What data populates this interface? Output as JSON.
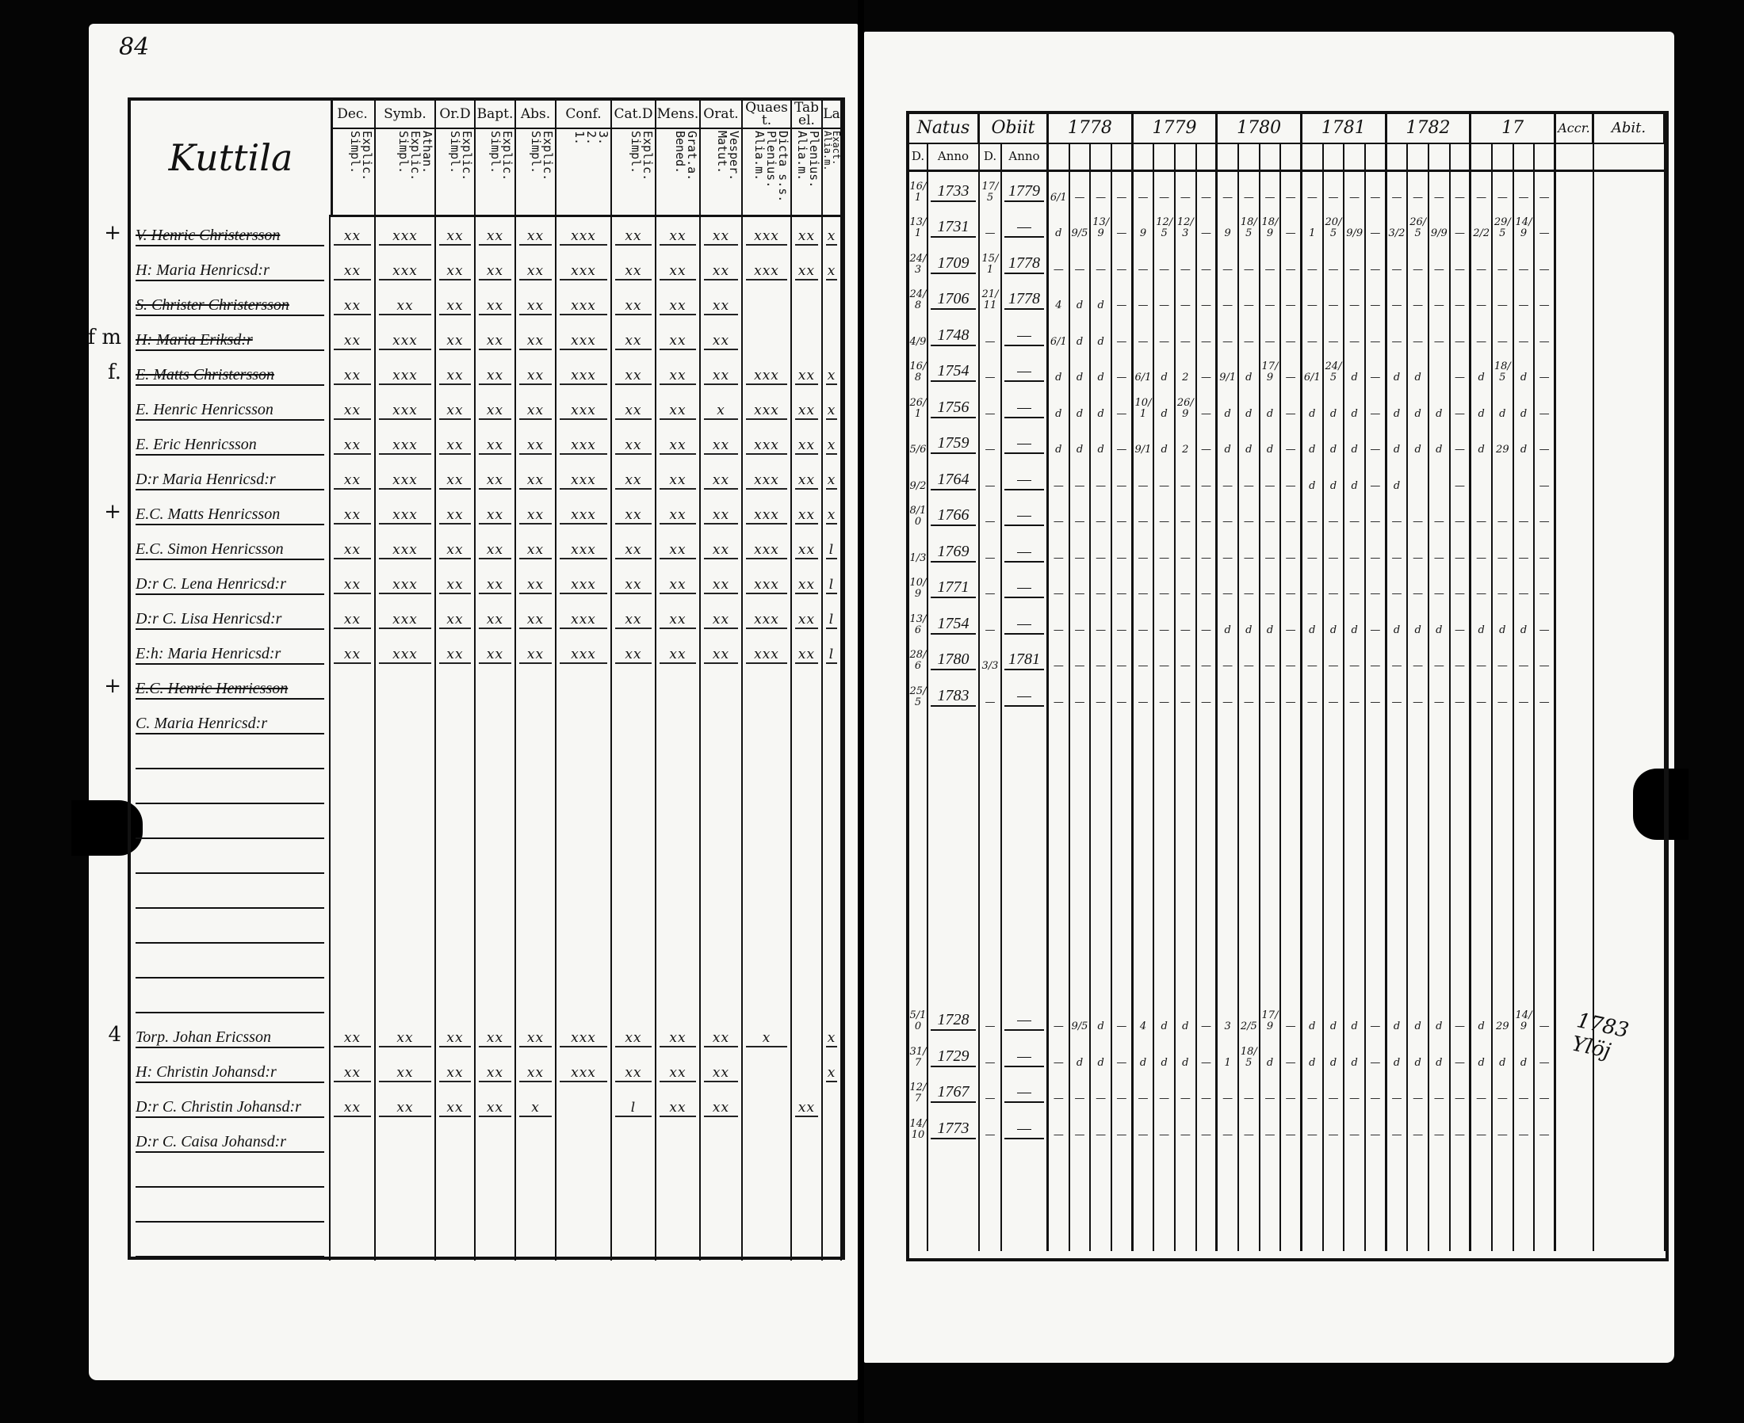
{
  "page_number": "84",
  "place_name": "Kuttila",
  "left_table": {
    "columns": [
      {
        "title": "Dec.",
        "sub": "Explic.\nSimpl."
      },
      {
        "title": "Symb.",
        "sub": "Athan.\nExplic.\nSimpl."
      },
      {
        "title": "Or.D",
        "sub": "Explic.\nSimpl."
      },
      {
        "title": "Bapt.",
        "sub": "Explic.\nSimpl."
      },
      {
        "title": "Abs.",
        "sub": "Explic.\nSimpl."
      },
      {
        "title": "Conf.",
        "sub": "3.\n2.\n1."
      },
      {
        "title": "Cat.D",
        "sub": "Explic.\nSimpl."
      },
      {
        "title": "Mens.",
        "sub": "Grat.a.\nBened."
      },
      {
        "title": "Orat.",
        "sub": "Vesper.\nMatut."
      },
      {
        "title": "Quaest.",
        "sub": "Dicta s.s.\nPlenius.\nAlia.m."
      },
      {
        "title": "Tabel.",
        "sub": "Plenius.\nAlia.m."
      },
      {
        "title": "La",
        "sub": "Exact.\nAlia.m."
      }
    ]
  },
  "right_table": {
    "natus": {
      "title": "Natus",
      "d": "D.",
      "anno": "Anno"
    },
    "obiit": {
      "title": "Obiit",
      "d": "D.",
      "anno": "Anno"
    },
    "years": [
      "1778",
      "1779",
      "1780",
      "1781",
      "1782",
      "17"
    ],
    "accr": "Accr.",
    "abit": "Abit."
  },
  "abit_note": "1783 Ylöj",
  "rows": [
    {
      "mark": "+",
      "name": "V. Henric Christersson",
      "struck": true,
      "cells": [
        "xx",
        "xxx",
        "xx",
        "xx",
        "xx",
        "xxx",
        "xx",
        "xx",
        "xx",
        "xxx",
        "xx",
        "x"
      ],
      "natus_d": "16/1",
      "natus_anno": "1733",
      "obiit_d": "17/5",
      "obiit_anno": "1779",
      "years": [
        "6/1",
        "—",
        "—",
        "—",
        "—",
        "—",
        "—",
        "—",
        "—",
        "—",
        "—",
        "—",
        "—",
        "—",
        "—",
        "—",
        "—",
        "—",
        "—",
        "—",
        "—",
        "—",
        "—",
        "—"
      ]
    },
    {
      "mark": "",
      "name": "H: Maria Henricsd:r",
      "struck": false,
      "cells": [
        "xx",
        "xxx",
        "xx",
        "xx",
        "xx",
        "xxx",
        "xx",
        "xx",
        "xx",
        "xxx",
        "xx",
        "x"
      ],
      "natus_d": "13/1",
      "natus_anno": "1731",
      "obiit_d": "—",
      "obiit_anno": "—",
      "years": [
        "d",
        "9/5",
        "13/9",
        "—",
        "9",
        "12/5",
        "12/3",
        "—",
        "9",
        "18/5",
        "18/9",
        "—",
        "1",
        "20/5",
        "9/9",
        "—",
        "3/2",
        "26/5",
        "9/9",
        "—",
        "2/2",
        "29/5",
        "14/9",
        "—"
      ]
    },
    {
      "mark": "",
      "name": "S. Christer Christersson",
      "struck": true,
      "cells": [
        "xx",
        "xx",
        "xx",
        "xx",
        "xx",
        "xxx",
        "xx",
        "xx",
        "xx",
        "",
        "",
        ""
      ],
      "natus_d": "24/3",
      "natus_anno": "1709",
      "obiit_d": "15/1",
      "obiit_anno": "1778",
      "years": [
        "—",
        "—",
        "—",
        "—",
        "—",
        "—",
        "—",
        "—",
        "—",
        "—",
        "—",
        "—",
        "—",
        "—",
        "—",
        "—",
        "—",
        "—",
        "—",
        "—",
        "—",
        "—",
        "—",
        "—"
      ]
    },
    {
      "mark": "f m",
      "name": "H: Maria Eriksd:r",
      "struck": true,
      "cells": [
        "xx",
        "xxx",
        "xx",
        "xx",
        "xx",
        "xxx",
        "xx",
        "xx",
        "xx",
        "",
        "",
        ""
      ],
      "natus_d": "24/8",
      "natus_anno": "1706",
      "obiit_d": "21/11",
      "obiit_anno": "1778",
      "years": [
        "4",
        "d",
        "d",
        "—",
        "—",
        "—",
        "—",
        "—",
        "—",
        "—",
        "—",
        "—",
        "—",
        "—",
        "—",
        "—",
        "—",
        "—",
        "—",
        "—",
        "—",
        "—",
        "—",
        "—"
      ]
    },
    {
      "mark": "f.",
      "name": "E. Matts Christersson",
      "struck": true,
      "cells": [
        "xx",
        "xxx",
        "xx",
        "xx",
        "xx",
        "xxx",
        "xx",
        "xx",
        "xx",
        "xxx",
        "xx",
        "x"
      ],
      "natus_d": "4/9",
      "natus_anno": "1748",
      "obiit_d": "—",
      "obiit_anno": "—",
      "years": [
        "6/1",
        "d",
        "d",
        "—",
        "—",
        "—",
        "—",
        "—",
        "—",
        "—",
        "—",
        "—",
        "—",
        "—",
        "—",
        "—",
        "—",
        "—",
        "—",
        "—",
        "—",
        "—",
        "—",
        "—"
      ]
    },
    {
      "mark": "",
      "name": "E. Henric Henricsson",
      "struck": false,
      "cells": [
        "xx",
        "xxx",
        "xx",
        "xx",
        "xx",
        "xxx",
        "xx",
        "xx",
        "x",
        "xxx",
        "xx",
        "x"
      ],
      "natus_d": "16/8",
      "natus_anno": "1754",
      "obiit_d": "—",
      "obiit_anno": "—",
      "years": [
        "d",
        "d",
        "d",
        "—",
        "6/1",
        "d",
        "2",
        "—",
        "9/1",
        "d",
        "17/9",
        "—",
        "6/1",
        "24/5",
        "d",
        "—",
        "d",
        "d",
        "",
        "—",
        "d",
        "18/5",
        "d",
        "—"
      ]
    },
    {
      "mark": "",
      "name": "E. Eric Henricsson",
      "struck": false,
      "cells": [
        "xx",
        "xxx",
        "xx",
        "xx",
        "xx",
        "xxx",
        "xx",
        "xx",
        "xx",
        "xxx",
        "xx",
        "x"
      ],
      "natus_d": "26/1",
      "natus_anno": "1756",
      "obiit_d": "—",
      "obiit_anno": "—",
      "years": [
        "d",
        "d",
        "d",
        "—",
        "10/1",
        "d",
        "26/9",
        "—",
        "d",
        "d",
        "d",
        "—",
        "d",
        "d",
        "d",
        "—",
        "d",
        "d",
        "d",
        "—",
        "d",
        "d",
        "d",
        "—"
      ]
    },
    {
      "mark": "",
      "name": "D:r Maria Henricsd:r",
      "struck": false,
      "cells": [
        "xx",
        "xxx",
        "xx",
        "xx",
        "xx",
        "xxx",
        "xx",
        "xx",
        "xx",
        "xxx",
        "xx",
        "x"
      ],
      "natus_d": "5/6",
      "natus_anno": "1759",
      "obiit_d": "—",
      "obiit_anno": "—",
      "years": [
        "d",
        "d",
        "d",
        "—",
        "9/1",
        "d",
        "2",
        "—",
        "d",
        "d",
        "d",
        "—",
        "d",
        "d",
        "d",
        "—",
        "d",
        "d",
        "d",
        "—",
        "d",
        "29",
        "d",
        "—"
      ]
    },
    {
      "mark": "+",
      "name": "E.C. Matts Henricsson",
      "struck": false,
      "cells": [
        "xx",
        "xxx",
        "xx",
        "xx",
        "xx",
        "xxx",
        "xx",
        "xx",
        "xx",
        "xxx",
        "xx",
        "x"
      ],
      "natus_d": "9/2",
      "natus_anno": "1764",
      "obiit_d": "—",
      "obiit_anno": "—",
      "years": [
        "—",
        "—",
        "—",
        "—",
        "—",
        "—",
        "—",
        "—",
        "—",
        "—",
        "—",
        "—",
        "d",
        "d",
        "d",
        "—",
        "d",
        "",
        "",
        "—",
        "",
        "",
        "",
        "—"
      ]
    },
    {
      "mark": "",
      "name": "E.C. Simon Henricsson",
      "struck": false,
      "cells": [
        "xx",
        "xxx",
        "xx",
        "xx",
        "xx",
        "xxx",
        "xx",
        "xx",
        "xx",
        "xxx",
        "xx",
        "l"
      ],
      "natus_d": "8/10",
      "natus_anno": "1766",
      "obiit_d": "—",
      "obiit_anno": "—",
      "years": [
        "—",
        "—",
        "—",
        "—",
        "—",
        "—",
        "—",
        "—",
        "—",
        "—",
        "—",
        "—",
        "—",
        "—",
        "—",
        "—",
        "—",
        "—",
        "—",
        "—",
        "—",
        "—",
        "—",
        "—"
      ]
    },
    {
      "mark": "",
      "name": "D:r C. Lena Henricsd:r",
      "struck": false,
      "cells": [
        "xx",
        "xxx",
        "xx",
        "xx",
        "xx",
        "xxx",
        "xx",
        "xx",
        "xx",
        "xxx",
        "xx",
        "l"
      ],
      "natus_d": "1/3",
      "natus_anno": "1769",
      "obiit_d": "—",
      "obiit_anno": "—",
      "years": [
        "—",
        "—",
        "—",
        "—",
        "—",
        "—",
        "—",
        "—",
        "—",
        "—",
        "—",
        "—",
        "—",
        "—",
        "—",
        "—",
        "—",
        "—",
        "—",
        "—",
        "—",
        "—",
        "—",
        "—"
      ]
    },
    {
      "mark": "",
      "name": "D:r C. Lisa Henricsd:r",
      "struck": false,
      "cells": [
        "xx",
        "xxx",
        "xx",
        "xx",
        "xx",
        "xxx",
        "xx",
        "xx",
        "xx",
        "xxx",
        "xx",
        "l"
      ],
      "natus_d": "10/9",
      "natus_anno": "1771",
      "obiit_d": "—",
      "obiit_anno": "—",
      "years": [
        "—",
        "—",
        "—",
        "—",
        "—",
        "—",
        "—",
        "—",
        "—",
        "—",
        "—",
        "—",
        "—",
        "—",
        "—",
        "—",
        "—",
        "—",
        "—",
        "—",
        "—",
        "—",
        "—",
        "—"
      ]
    },
    {
      "mark": "",
      "name": "E:h: Maria Henricsd:r",
      "struck": false,
      "cells": [
        "xx",
        "xxx",
        "xx",
        "xx",
        "xx",
        "xxx",
        "xx",
        "xx",
        "xx",
        "xxx",
        "xx",
        "l"
      ],
      "natus_d": "13/6",
      "natus_anno": "1754",
      "obiit_d": "—",
      "obiit_anno": "—",
      "years": [
        "—",
        "—",
        "—",
        "—",
        "—",
        "—",
        "—",
        "—",
        "d",
        "d",
        "d",
        "—",
        "d",
        "d",
        "d",
        "—",
        "d",
        "d",
        "d",
        "—",
        "d",
        "d",
        "d",
        "—"
      ]
    },
    {
      "mark": "+",
      "name": "E.C. Henric Henricsson",
      "struck": true,
      "cells": [
        "",
        "",
        "",
        "",
        "",
        "",
        "",
        "",
        "",
        "",
        "",
        ""
      ],
      "natus_d": "28/6",
      "natus_anno": "1780",
      "obiit_d": "3/3",
      "obiit_anno": "1781",
      "years": [
        "—",
        "—",
        "—",
        "—",
        "—",
        "—",
        "—",
        "—",
        "—",
        "—",
        "—",
        "—",
        "—",
        "—",
        "—",
        "—",
        "—",
        "—",
        "—",
        "—",
        "—",
        "—",
        "—",
        "—"
      ]
    },
    {
      "mark": "",
      "name": "C. Maria Henricsd:r",
      "struck": false,
      "cells": [
        "",
        "",
        "",
        "",
        "",
        "",
        "",
        "",
        "",
        "",
        "",
        ""
      ],
      "natus_d": "25/5",
      "natus_anno": "1783",
      "obiit_d": "—",
      "obiit_anno": "—",
      "years": [
        "—",
        "—",
        "—",
        "—",
        "—",
        "—",
        "—",
        "—",
        "—",
        "—",
        "—",
        "—",
        "—",
        "—",
        "—",
        "—",
        "—",
        "—",
        "—",
        "—",
        "—",
        "—",
        "—",
        "—"
      ]
    },
    {
      "blank": true
    },
    {
      "blank": true
    },
    {
      "blank": true
    },
    {
      "blank": true
    },
    {
      "blank": true
    },
    {
      "blank": true
    },
    {
      "blank": true
    },
    {
      "blank": true
    },
    {
      "mark": "4",
      "name": "Torp. Johan Ericsson",
      "struck": false,
      "cells": [
        "xx",
        "xx",
        "xx",
        "xx",
        "xx",
        "xxx",
        "xx",
        "xx",
        "xx",
        "x",
        "",
        "x"
      ],
      "natus_d": "5/10",
      "natus_anno": "1728",
      "obiit_d": "—",
      "obiit_anno": "—",
      "years": [
        "—",
        "9/5",
        "d",
        "—",
        "4",
        "d",
        "d",
        "—",
        "3",
        "2/5",
        "17/9",
        "—",
        "d",
        "d",
        "d",
        "—",
        "d",
        "d",
        "d",
        "—",
        "d",
        "29",
        "14/9",
        "—"
      ]
    },
    {
      "mark": "",
      "name": "H: Christin Johansd:r",
      "struck": false,
      "cells": [
        "xx",
        "xx",
        "xx",
        "xx",
        "xx",
        "xxx",
        "xx",
        "xx",
        "xx",
        "",
        "",
        "x"
      ],
      "natus_d": "31/7",
      "natus_anno": "1729",
      "obiit_d": "—",
      "obiit_anno": "—",
      "years": [
        "—",
        "d",
        "d",
        "—",
        "d",
        "d",
        "d",
        "—",
        "1",
        "18/5",
        "d",
        "—",
        "d",
        "d",
        "d",
        "—",
        "d",
        "d",
        "d",
        "—",
        "d",
        "d",
        "d",
        "—"
      ]
    },
    {
      "mark": "",
      "name": "D:r C. Christin Johansd:r",
      "struck": false,
      "cells": [
        "xx",
        "xx",
        "xx",
        "xx",
        "x",
        "",
        "l",
        "xx",
        "xx",
        "",
        "xx",
        ""
      ],
      "natus_d": "12/7",
      "natus_anno": "1767",
      "obiit_d": "—",
      "obiit_anno": "—",
      "years": [
        "—",
        "—",
        "—",
        "—",
        "—",
        "—",
        "—",
        "—",
        "—",
        "—",
        "—",
        "—",
        "—",
        "—",
        "—",
        "—",
        "—",
        "—",
        "—",
        "—",
        "—",
        "—",
        "—",
        "—"
      ]
    },
    {
      "mark": "",
      "name": "D:r C. Caisa Johansd:r",
      "struck": false,
      "cells": [
        "",
        "",
        "",
        "",
        "",
        "",
        "",
        "",
        "",
        "",
        "",
        ""
      ],
      "natus_d": "14/10",
      "natus_anno": "1773",
      "obiit_d": "—",
      "obiit_anno": "—",
      "years": [
        "—",
        "—",
        "—",
        "—",
        "—",
        "—",
        "—",
        "—",
        "—",
        "—",
        "—",
        "—",
        "—",
        "—",
        "—",
        "—",
        "—",
        "—",
        "—",
        "—",
        "—",
        "—",
        "—",
        "—"
      ]
    },
    {
      "blank": true
    },
    {
      "blank": true
    },
    {
      "blank": true
    }
  ]
}
